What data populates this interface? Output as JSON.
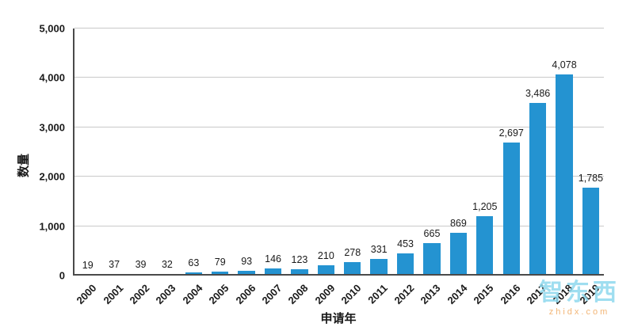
{
  "chart_data": {
    "type": "bar",
    "title": "",
    "categories": [
      "2000",
      "2001",
      "2002",
      "2003",
      "2004",
      "2005",
      "2006",
      "2007",
      "2008",
      "2009",
      "2010",
      "2011",
      "2012",
      "2013",
      "2014",
      "2015",
      "2016",
      "2017",
      "2018",
      "2019"
    ],
    "values": [
      19,
      37,
      39,
      32,
      63,
      79,
      93,
      146,
      123,
      210,
      278,
      331,
      453,
      665,
      869,
      1205,
      2697,
      3486,
      4078,
      1785
    ],
    "xlabel": "申请年",
    "ylabel": "数量",
    "ylim": [
      0,
      5000
    ],
    "ytick_interval": 1000,
    "yticks": [
      "0",
      "1,000",
      "2,000",
      "3,000",
      "4,000",
      "5,000"
    ],
    "bar_color": "#2493d1",
    "grid": true,
    "legend": "none",
    "value_labels": true
  },
  "watermark": {
    "line1": "智东西",
    "line2": "zhidx.com"
  }
}
